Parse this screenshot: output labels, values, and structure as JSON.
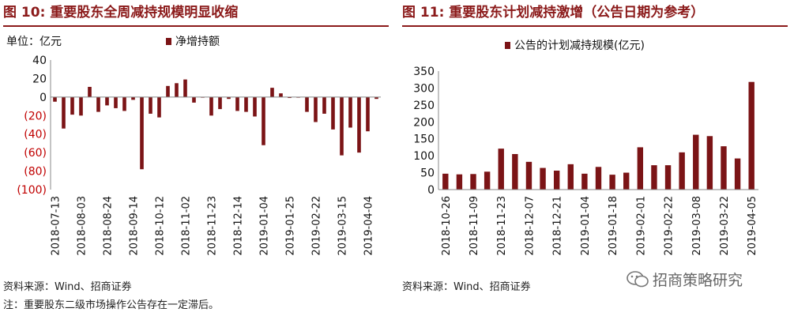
{
  "left": {
    "title": "图 10:  重要股东全周减持规模明显收缩",
    "source": "资料来源：Wind、招商证券",
    "note": "注：重要股东二级市场操作公告存在一定滞后。"
  },
  "right": {
    "title": "图 11:  重要股东计划减持激增（公告日期为参考）",
    "source": "资料来源：Wind、招商证券"
  },
  "watermark": "招商策略研究",
  "colors": {
    "bar": "#7b1416",
    "title": "#8b1a1a",
    "negative_tick": "#c00000"
  },
  "chart_data": [
    {
      "type": "bar",
      "title": "重要股东全周减持规模明显收缩",
      "unit_label": "单位：亿元",
      "legend": "净增持额",
      "legend_position": "top",
      "ylim": [
        -100,
        40
      ],
      "yticks": [
        40,
        20,
        0,
        -20,
        -40,
        -60,
        -80,
        -100
      ],
      "ytick_labels": [
        "40",
        "20",
        "0",
        "(20)",
        "(40)",
        "(60)",
        "(80)",
        "(100)"
      ],
      "grid": false,
      "x_tick_labels": [
        "2018-07-13",
        "2018-08-03",
        "2018-08-24",
        "2018-09-14",
        "2018-10-12",
        "2018-11-02",
        "2018-11-23",
        "2018-12-14",
        "2019-01-04",
        "2019-01-25",
        "2019-02-22",
        "2019-03-15",
        "2019-04-04"
      ],
      "x_tick_every": 3,
      "series": [
        {
          "name": "净增持额",
          "values": [
            -5,
            -34,
            -19,
            -20,
            11,
            -16,
            -9,
            -12,
            -15,
            -3,
            -78,
            -18,
            -22,
            12,
            15,
            19,
            -6,
            0,
            -20,
            -13,
            -2,
            -15,
            -16,
            -21,
            -52,
            10,
            4,
            -1,
            0,
            -16,
            -27,
            -18,
            -35,
            -63,
            -33,
            -60,
            -37,
            -2
          ]
        }
      ]
    },
    {
      "type": "bar",
      "title": "重要股东计划减持激增（公告日期为参考）",
      "legend": "公告的计划减持规模(亿元)",
      "legend_position": "top",
      "ylim": [
        0,
        350
      ],
      "yticks": [
        0,
        50,
        100,
        150,
        200,
        250,
        300,
        350
      ],
      "grid": false,
      "x_tick_labels": [
        "2018-10-26",
        "2018-11-09",
        "2018-11-23",
        "2018-12-07",
        "2018-12-21",
        "2019-01-04",
        "2019-01-18",
        "2019-02-01",
        "2019-02-22",
        "2019-03-08",
        "2019-03-22",
        "2019-04-05"
      ],
      "x_tick_every": 2,
      "series": [
        {
          "name": "公告的计划减持规模(亿元)",
          "values": [
            47,
            45,
            46,
            53,
            121,
            105,
            82,
            64,
            56,
            75,
            47,
            67,
            44,
            50,
            125,
            72,
            72,
            110,
            162,
            158,
            128,
            92,
            318
          ]
        }
      ]
    }
  ]
}
